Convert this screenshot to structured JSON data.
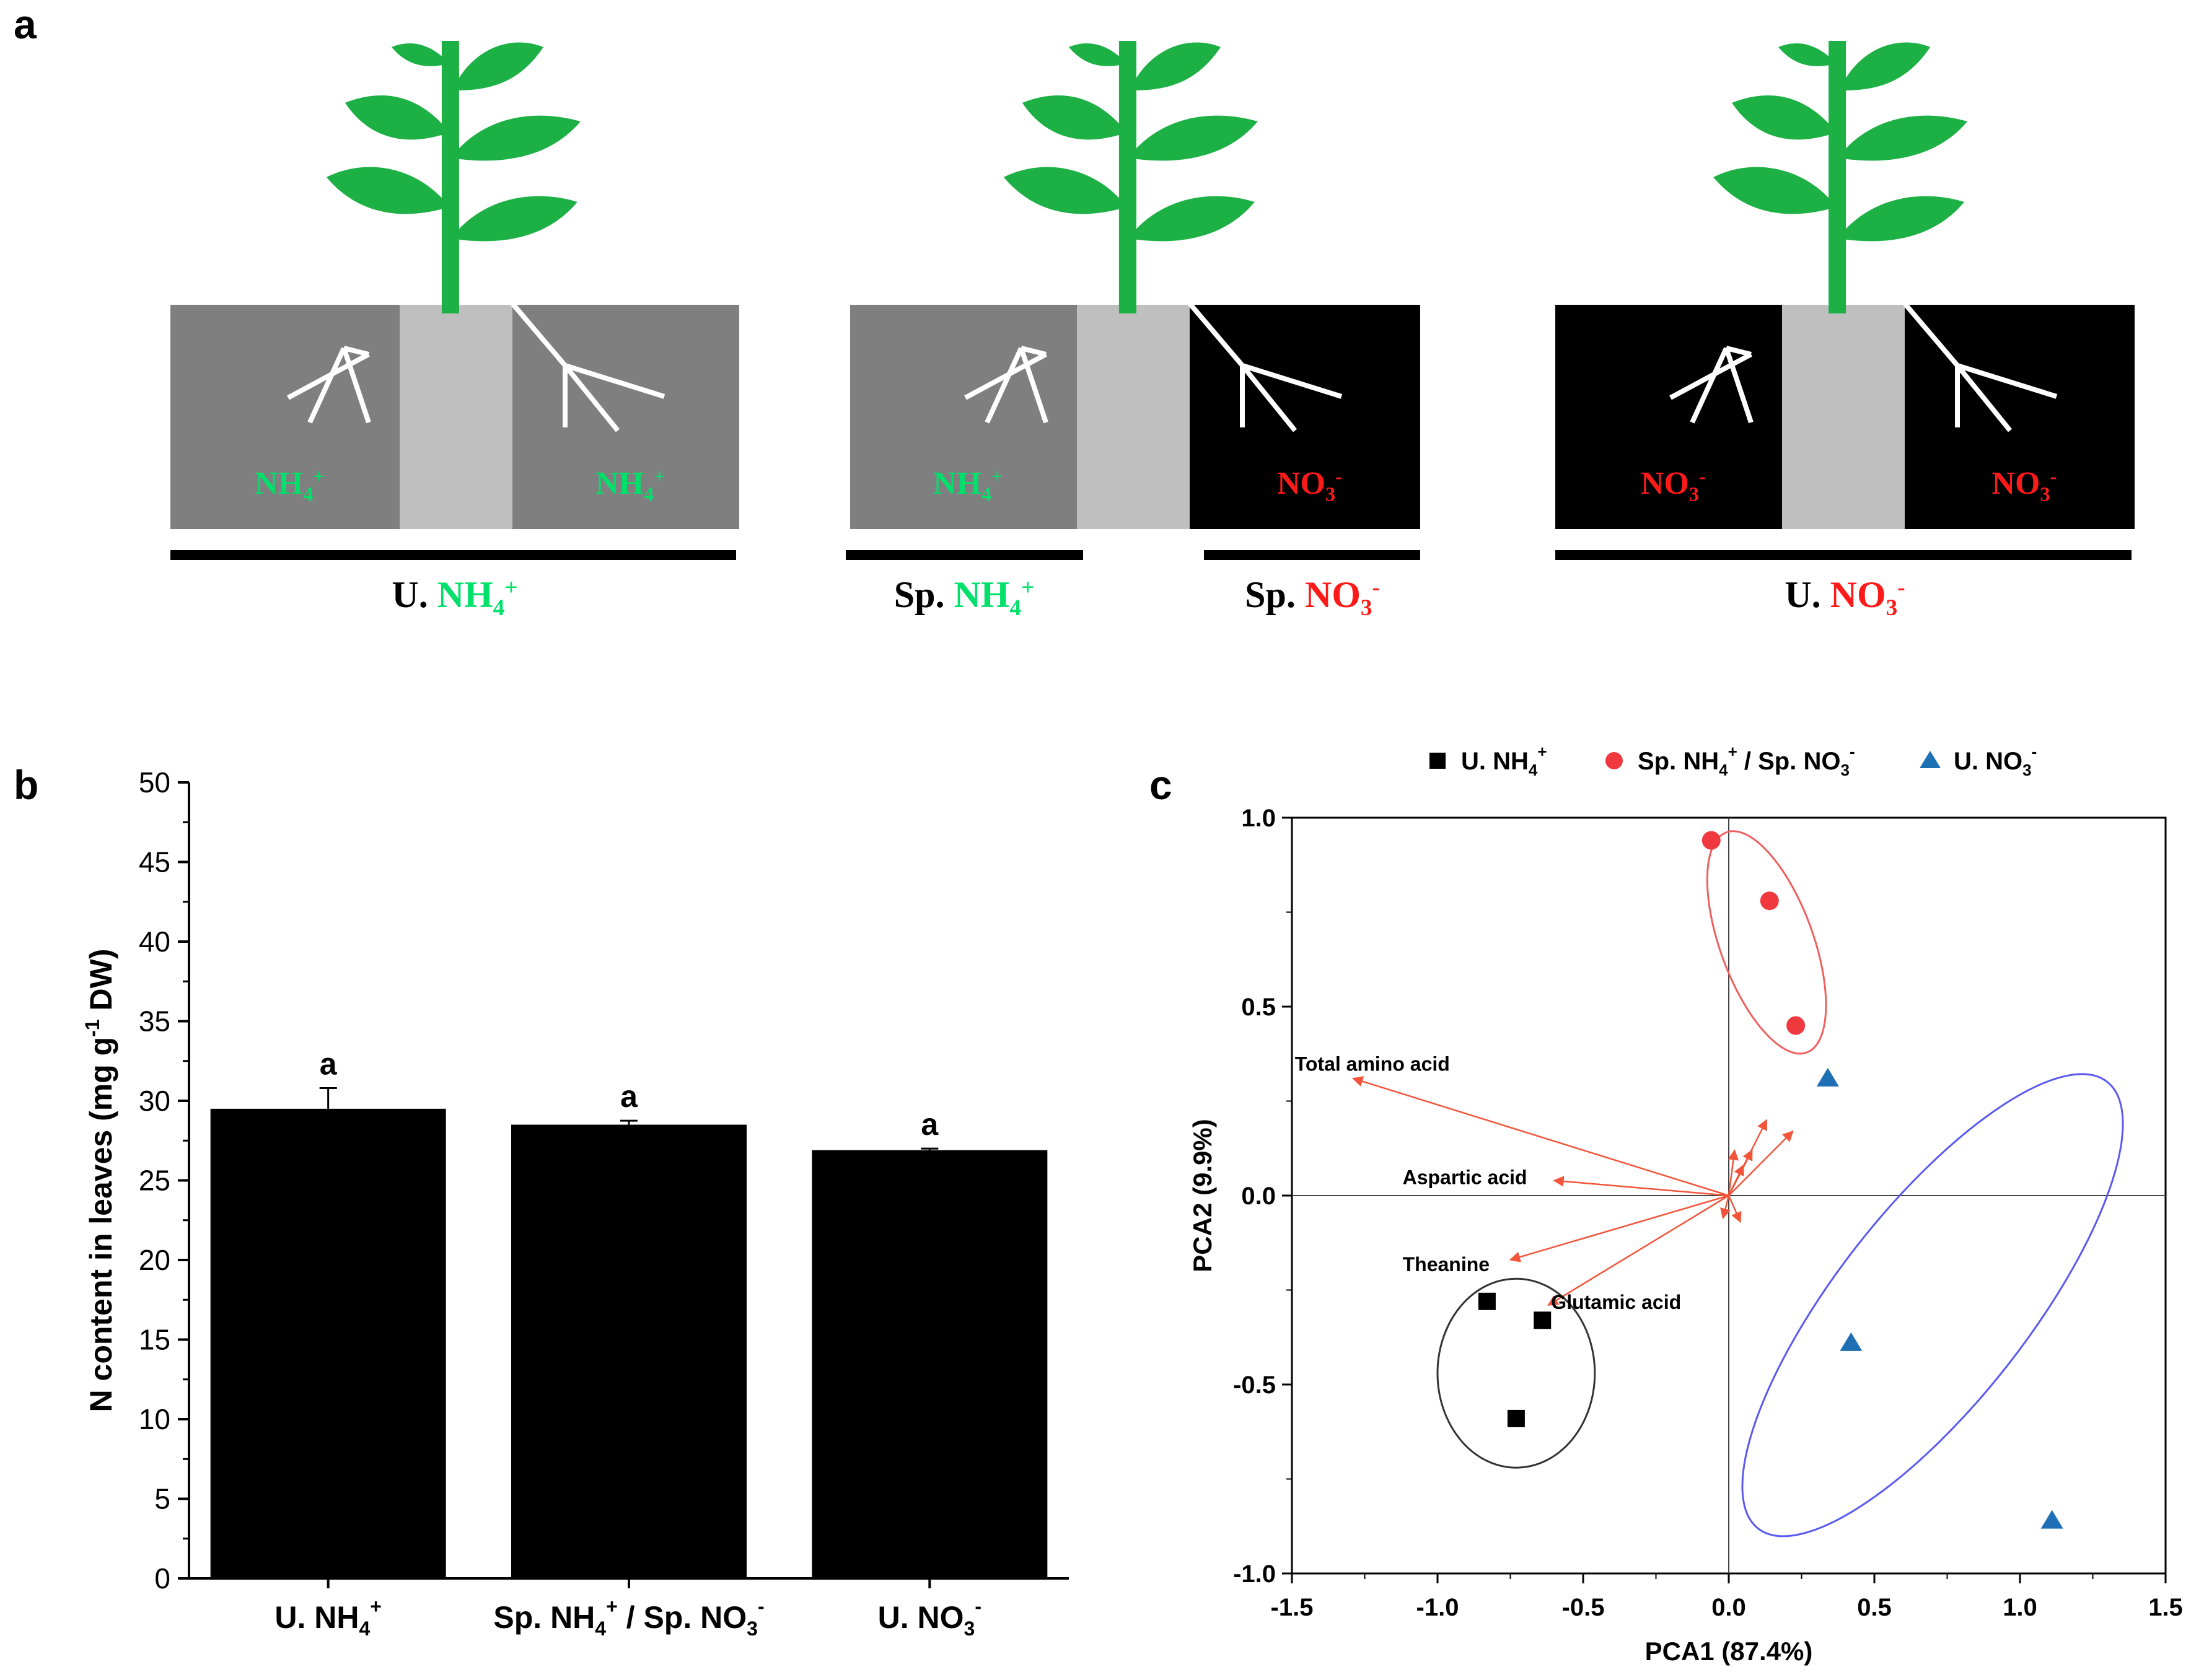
{
  "panel_labels": {
    "a": "a",
    "b": "b",
    "c": "c"
  },
  "colors": {
    "plant_green": "#1DB045",
    "ammonium_green": "#00E06A",
    "nitrate_red": "#FF1A1A",
    "box_grey": "#7F7F7F",
    "divider_grey": "#BFBFBF",
    "box_black": "#000000",
    "pca_red": "#F0383F",
    "pca_blue": "#1F6FB4",
    "ellipse_red": "#F06060",
    "ellipse_blue": "#5A5AF0",
    "ellipse_black": "#333333",
    "vector": "#F2553A"
  },
  "panel_a": {
    "setups": [
      {
        "left_compartment": {
          "ion": "NH",
          "sub": "4",
          "sup": "+"
        },
        "right_compartment": {
          "ion": "NH",
          "sub": "4",
          "sup": "+"
        },
        "labels": [
          {
            "prefix": "U.",
            "ion": "NH",
            "sub": "4",
            "sup": "+"
          }
        ]
      },
      {
        "left_compartment": {
          "ion": "NH",
          "sub": "4",
          "sup": "+"
        },
        "right_compartment": {
          "ion": "NO",
          "sub": "3",
          "sup": "-"
        },
        "labels": [
          {
            "prefix": "Sp.",
            "ion": "NH",
            "sub": "4",
            "sup": "+"
          },
          {
            "prefix": "Sp.",
            "ion": "NO",
            "sub": "3",
            "sup": "-"
          }
        ]
      },
      {
        "left_compartment": {
          "ion": "NO",
          "sub": "3",
          "sup": "-"
        },
        "right_compartment": {
          "ion": "NO",
          "sub": "3",
          "sup": "-"
        },
        "labels": [
          {
            "prefix": "U.",
            "ion": "NO",
            "sub": "3",
            "sup": "-"
          }
        ]
      }
    ]
  },
  "chart_data": [
    {
      "type": "bar",
      "panel": "b",
      "categories": [
        {
          "prefix": "U. NH",
          "sub": "4",
          "sup": "+",
          "rest": ""
        },
        {
          "prefix": "Sp. NH",
          "sub": "4",
          "sup": "+",
          "rest": " / Sp. NO",
          "sub2": "3",
          "sup2": "-"
        },
        {
          "prefix": "U. NO",
          "sub": "3",
          "sup": "-",
          "rest": ""
        }
      ],
      "values": [
        29.5,
        28.5,
        26.9
      ],
      "errors": [
        1.3,
        0.25,
        0.1
      ],
      "significance": [
        "a",
        "a",
        "a"
      ],
      "ylabel": {
        "main": "N content in leaves (mg g",
        "sup": "-1",
        "end": " DW)"
      },
      "ylim": [
        0,
        50
      ],
      "yticks": [
        0,
        5,
        10,
        15,
        20,
        25,
        30,
        35,
        40,
        45,
        50
      ],
      "title": ""
    },
    {
      "type": "scatter",
      "panel": "c",
      "xlabel": "PCA1 (87.4%)",
      "ylabel": "PCA2 (9.9%)",
      "xlim": [
        -1.5,
        1.5
      ],
      "ylim": [
        -1.0,
        1.0
      ],
      "xticks": [
        -1.5,
        -1.0,
        -0.5,
        0.0,
        0.5,
        1.0,
        1.5
      ],
      "xtick_labels": [
        "-1.5",
        "-1.0",
        "-0.5",
        "0.0",
        "0.5",
        "1.0",
        "1.5"
      ],
      "yticks": [
        -1.0,
        -0.5,
        0.0,
        0.5,
        1.0
      ],
      "ytick_labels": [
        "-1.0",
        "-0.5",
        "0.0",
        "0.5",
        "1.0"
      ],
      "legend": [
        {
          "marker": "square",
          "label": "U. NH",
          "sub": "4",
          "sup": "+",
          "rest": ""
        },
        {
          "marker": "circle",
          "label": "Sp. NH",
          "sub": "4",
          "sup": "+",
          "rest": " / Sp. NO",
          "sub2": "3",
          "sup2": "-"
        },
        {
          "marker": "triangle",
          "label": "U. NO",
          "sub": "3",
          "sup": "-",
          "rest": ""
        }
      ],
      "series": [
        {
          "name": "U. NH4+",
          "marker": "square",
          "points": [
            [
              -0.83,
              -0.28
            ],
            [
              -0.64,
              -0.33
            ],
            [
              -0.73,
              -0.59
            ]
          ]
        },
        {
          "name": "Sp. NH4+ / Sp. NO3-",
          "marker": "circle",
          "points": [
            [
              -0.06,
              0.94
            ],
            [
              0.14,
              0.78
            ],
            [
              0.23,
              0.45
            ]
          ]
        },
        {
          "name": "U. NO3-",
          "marker": "triangle",
          "points": [
            [
              0.34,
              0.31
            ],
            [
              0.42,
              -0.39
            ],
            [
              1.11,
              -0.86
            ]
          ]
        }
      ],
      "ellipses": [
        {
          "group": "U. NH4+",
          "center": [
            -0.73,
            -0.47
          ],
          "rx_units": 0.27,
          "ry_units": 0.25,
          "angle_deg": 0
        },
        {
          "group": "Sp. NH4+ / Sp. NO3-",
          "center": [
            0.13,
            0.67
          ],
          "rx_units": 0.16,
          "ry_units": 0.31,
          "angle_deg": -20
        },
        {
          "group": "U. NO3-",
          "center": [
            0.7,
            -0.29
          ],
          "rx_units": 0.33,
          "ry_units": 0.75,
          "angle_deg": 38
        }
      ],
      "loadings": [
        {
          "label": "Total amino acid",
          "end": [
            -1.29,
            0.31
          ],
          "labeled": true
        },
        {
          "label": "Aspartic acid",
          "end": [
            -0.6,
            0.04
          ],
          "labeled": true
        },
        {
          "label": "Theanine",
          "end": [
            -0.75,
            -0.17
          ],
          "labeled": true
        },
        {
          "label": "Glutamic acid",
          "end": [
            -0.62,
            -0.29
          ],
          "labeled": true
        },
        {
          "label": "",
          "end": [
            0.13,
            0.2
          ],
          "labeled": false
        },
        {
          "label": "",
          "end": [
            0.22,
            0.17
          ],
          "labeled": false
        },
        {
          "label": "",
          "end": [
            0.08,
            0.12
          ],
          "labeled": false
        },
        {
          "label": "",
          "end": [
            0.02,
            0.12
          ],
          "labeled": false
        },
        {
          "label": "",
          "end": [
            0.04,
            -0.07
          ],
          "labeled": false
        },
        {
          "label": "",
          "end": [
            -0.02,
            -0.06
          ],
          "labeled": false
        },
        {
          "label": "",
          "end": [
            0.05,
            0.08
          ],
          "labeled": false
        }
      ]
    }
  ]
}
